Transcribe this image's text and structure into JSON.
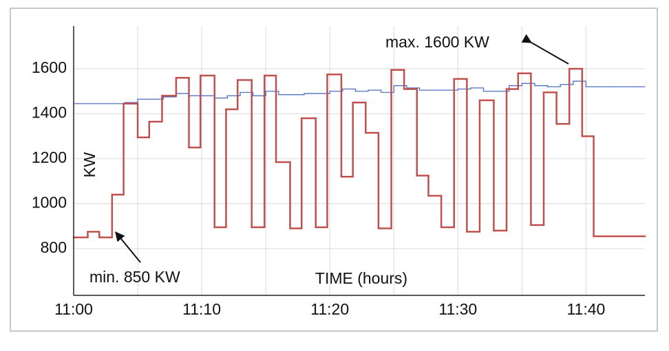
{
  "chart_data": {
    "type": "step-line",
    "step": "post",
    "xlabel": "TIME (hours)",
    "ylabel": "KW",
    "xlim": [
      0,
      44.6
    ],
    "ylim": [
      592,
      1790
    ],
    "xticks": [
      {
        "value": 0,
        "label": "11:00"
      },
      {
        "value": 10,
        "label": "11:10"
      },
      {
        "value": 20,
        "label": "11:20"
      },
      {
        "value": 30,
        "label": "11:30"
      },
      {
        "value": 40,
        "label": "11:40"
      }
    ],
    "xminor": [
      5,
      15,
      25,
      35
    ],
    "yticks": [
      800,
      1000,
      1200,
      1400,
      1600
    ],
    "grid": true,
    "annotations": [
      {
        "text": "max. 1600 KW"
      },
      {
        "text": "min. 850 KW"
      }
    ],
    "series": [
      {
        "color": "#c0504d",
        "x": [
          0,
          1.1,
          2.0,
          3.0,
          3.9,
          5.0,
          5.9,
          6.9,
          8.0,
          9.0,
          9.9,
          11.0,
          11.9,
          12.8,
          13.9,
          14.9,
          15.8,
          16.9,
          17.8,
          18.9,
          19.8,
          20.9,
          21.8,
          22.8,
          23.8,
          24.8,
          25.8,
          26.8,
          27.7,
          28.7,
          29.7,
          30.7,
          31.7,
          32.8,
          33.8,
          34.7,
          35.7,
          36.7,
          37.7,
          38.7,
          39.7,
          40.6
        ],
        "values": [
          850,
          875,
          850,
          1040,
          1445,
          1295,
          1365,
          1480,
          1560,
          1250,
          1570,
          895,
          1420,
          1550,
          895,
          1570,
          1185,
          890,
          1380,
          895,
          1575,
          1120,
          1450,
          1315,
          890,
          1595,
          1510,
          1125,
          1035,
          895,
          1555,
          875,
          1460,
          880,
          1510,
          1580,
          905,
          1495,
          1355,
          1600,
          1300,
          855
        ]
      },
      {
        "color": "#4f6fc0",
        "x": [
          0,
          4,
          5,
          7,
          8,
          9,
          11,
          12,
          13,
          14,
          15,
          16,
          18,
          20,
          21,
          22,
          23,
          24,
          25,
          26,
          27,
          30,
          31,
          32,
          34,
          35,
          36,
          37,
          38,
          39,
          40,
          42
        ],
        "values": [
          1445,
          1450,
          1465,
          1475,
          1490,
          1480,
          1470,
          1480,
          1495,
          1480,
          1500,
          1485,
          1490,
          1500,
          1510,
          1500,
          1505,
          1495,
          1525,
          1515,
          1505,
          1510,
          1515,
          1500,
          1525,
          1535,
          1525,
          1520,
          1530,
          1545,
          1520,
          1520
        ]
      }
    ]
  }
}
